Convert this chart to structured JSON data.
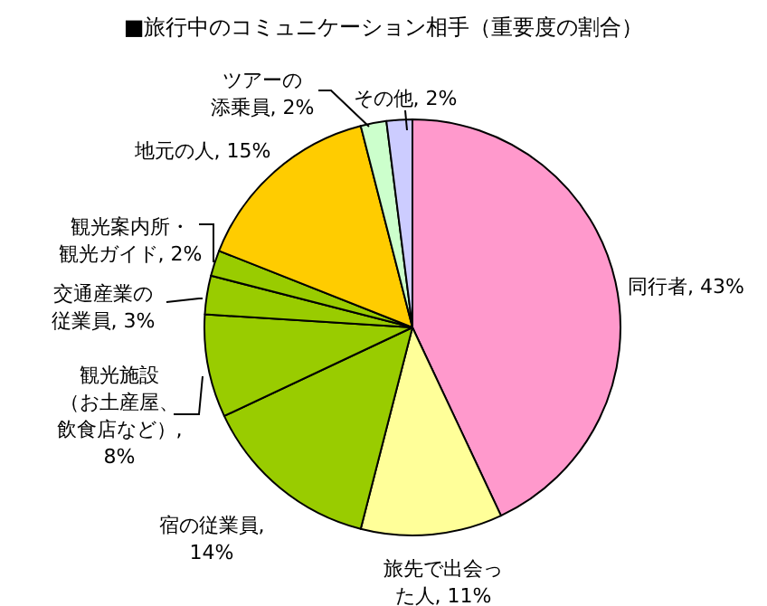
{
  "chart_data": {
    "type": "pie",
    "title": "■旅行中のコミュニケーション相手（重要度の割合）",
    "categories": [
      "同行者, 43%",
      "旅先で出会った人, 11%",
      "宿の従業員, 14%",
      "観光施設（お土産屋、飲食店など）, 8%",
      "交通産業の従業員, 3%",
      "観光案内所・観光ガイド, 2%",
      "地元の人, 15%",
      "ツアーの添乗員, 2%",
      "その他, 2%"
    ],
    "values": [
      43,
      11,
      14,
      8,
      3,
      2,
      15,
      2,
      2
    ],
    "colors": [
      "#ff99cc",
      "#ffff99",
      "#99cc00",
      "#99cc00",
      "#99cc00",
      "#99cc00",
      "#ffcc00",
      "#ccffcc",
      "#ccccff"
    ]
  }
}
